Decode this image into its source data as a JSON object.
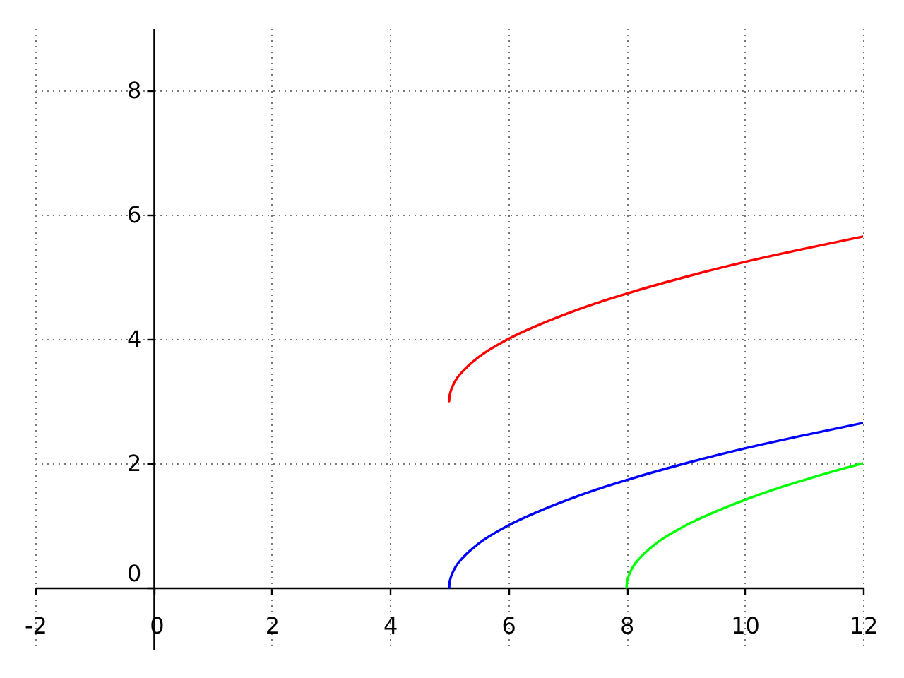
{
  "chart_data": {
    "type": "line",
    "xlim": [
      -2,
      12
    ],
    "ylim": [
      -1,
      9
    ],
    "xticks": [
      -2,
      0,
      2,
      4,
      6,
      8,
      10,
      12
    ],
    "yticks": [
      0,
      2,
      4,
      6,
      8
    ],
    "grid": true,
    "marker": "none",
    "line_style": "solid",
    "series": [
      {
        "color": "#ff0000",
        "x": [
          5,
          5.005,
          5.02,
          5.05,
          5.1,
          5.25,
          5.5,
          6,
          6.5,
          7,
          7.5,
          8,
          9,
          10,
          11,
          12
        ],
        "values": [
          3,
          3.07,
          3.14,
          3.22,
          3.32,
          3.5,
          3.71,
          4,
          4.22,
          4.41,
          4.58,
          4.73,
          5,
          5.24,
          5.45,
          5.65
        ]
      },
      {
        "color": "#0000ff",
        "x": [
          5,
          5.005,
          5.02,
          5.05,
          5.1,
          5.25,
          5.5,
          6,
          6.5,
          7,
          7.5,
          8,
          9,
          10,
          11,
          12
        ],
        "values": [
          0,
          0.07,
          0.14,
          0.22,
          0.32,
          0.5,
          0.71,
          1,
          1.22,
          1.41,
          1.58,
          1.73,
          2,
          2.24,
          2.45,
          2.65
        ]
      },
      {
        "color": "#00ff00",
        "x": [
          8,
          8.005,
          8.02,
          8.05,
          8.1,
          8.25,
          8.5,
          9,
          9.5,
          10,
          10.5,
          11,
          11.5,
          12
        ],
        "values": [
          0,
          0.07,
          0.14,
          0.22,
          0.32,
          0.5,
          0.71,
          1,
          1.22,
          1.41,
          1.58,
          1.73,
          1.87,
          2
        ]
      }
    ]
  }
}
